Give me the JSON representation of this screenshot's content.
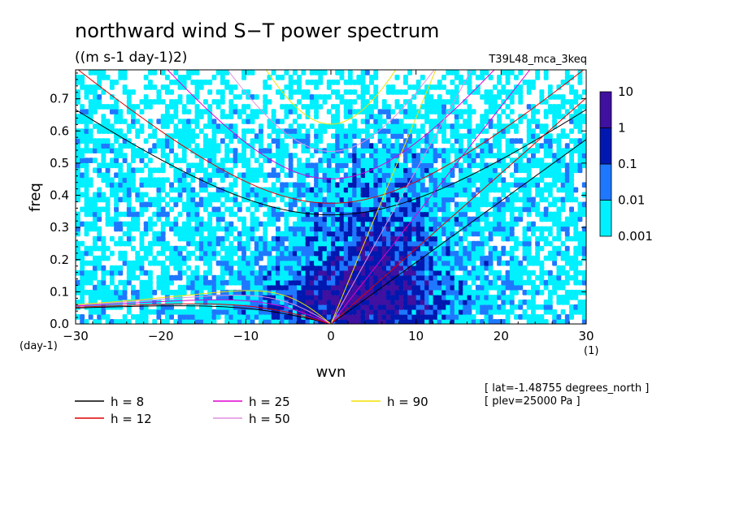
{
  "chart_data": {
    "type": "heatmap",
    "title": "northward wind S−T power spectrum",
    "units": "((m s-1 day-1)2)",
    "run_label": "T39L48_mca_3keq",
    "xlabel": "wvn",
    "ylabel": "freq",
    "x_unit": "(1)",
    "y_unit": "(day-1)",
    "xlim": [
      -30,
      30
    ],
    "ylim": [
      0,
      0.79
    ],
    "x_ticks": [
      -30,
      -20,
      -10,
      0,
      10,
      20,
      30
    ],
    "x_tick_labels": [
      "−30",
      "−20",
      "−10",
      "0",
      "10",
      "20",
      "30"
    ],
    "y_ticks": [
      0,
      0.1,
      0.2,
      0.3,
      0.4,
      0.5,
      0.6,
      0.7
    ],
    "y_tick_labels": [
      "0.0",
      "0.1",
      "0.2",
      "0.3",
      "0.4",
      "0.5",
      "0.6",
      "0.7"
    ],
    "colorbar": {
      "levels": [
        0.001,
        0.01,
        0.1,
        1,
        10
      ],
      "labels": [
        "0.001",
        "0.01",
        "0.1",
        "1",
        "10"
      ],
      "colors": [
        "#00f0ff",
        "#1e78ff",
        "#0018b0",
        "#4010a0"
      ]
    },
    "dispersion_curves": [
      {
        "h": 8,
        "label": "h =  8",
        "color": "#000000"
      },
      {
        "h": 12,
        "label": "h = 12",
        "color": "#e00000"
      },
      {
        "h": 25,
        "label": "h = 25",
        "color": "#e000d0"
      },
      {
        "h": 50,
        "label": "h = 50",
        "color": "#e090e0"
      },
      {
        "h": 90,
        "label": "h = 90",
        "color": "#f0e000"
      }
    ],
    "annotations": [
      "[ lat=-1.48755 degrees_north ]",
      "[ plev=25000 Pa ]"
    ]
  }
}
